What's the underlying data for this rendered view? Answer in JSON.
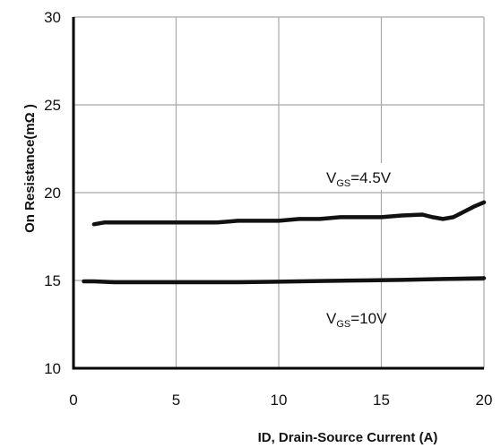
{
  "chart_data": {
    "type": "line",
    "title": "",
    "xlabel": "ID, Drain-Source Current (A)",
    "ylabel": "On Resistance(mΩ )",
    "xlim": [
      0,
      20
    ],
    "ylim": [
      10,
      30
    ],
    "x_ticks": [
      "0",
      "5",
      "10",
      "15",
      "20"
    ],
    "y_ticks": [
      "10",
      "15",
      "20",
      "25",
      "30"
    ],
    "grid": true,
    "legend": "none",
    "series": [
      {
        "name": "VGS=4.5V",
        "label_main": "V",
        "label_sub": "GS",
        "label_rest": "=4.5V",
        "color": "#111111",
        "x": [
          1.0,
          1.5,
          2,
          3,
          4,
          5,
          6,
          7,
          8,
          9,
          10,
          11,
          12,
          13,
          14,
          15,
          16,
          17,
          17.5,
          18,
          18.5,
          19,
          19.5,
          20
        ],
        "y": [
          18.2,
          18.3,
          18.3,
          18.3,
          18.3,
          18.3,
          18.3,
          18.3,
          18.4,
          18.4,
          18.4,
          18.5,
          18.5,
          18.6,
          18.6,
          18.6,
          18.7,
          18.75,
          18.6,
          18.5,
          18.6,
          18.9,
          19.2,
          19.45
        ]
      },
      {
        "name": "VGS=10V",
        "label_main": "V",
        "label_sub": "GS",
        "label_rest": "=10V",
        "color": "#111111",
        "x": [
          0.5,
          1,
          2,
          4,
          6,
          8,
          10,
          12,
          14,
          16,
          18,
          20
        ],
        "y": [
          14.95,
          14.95,
          14.9,
          14.9,
          14.9,
          14.9,
          14.93,
          14.97,
          15.0,
          15.03,
          15.08,
          15.13
        ]
      }
    ]
  }
}
